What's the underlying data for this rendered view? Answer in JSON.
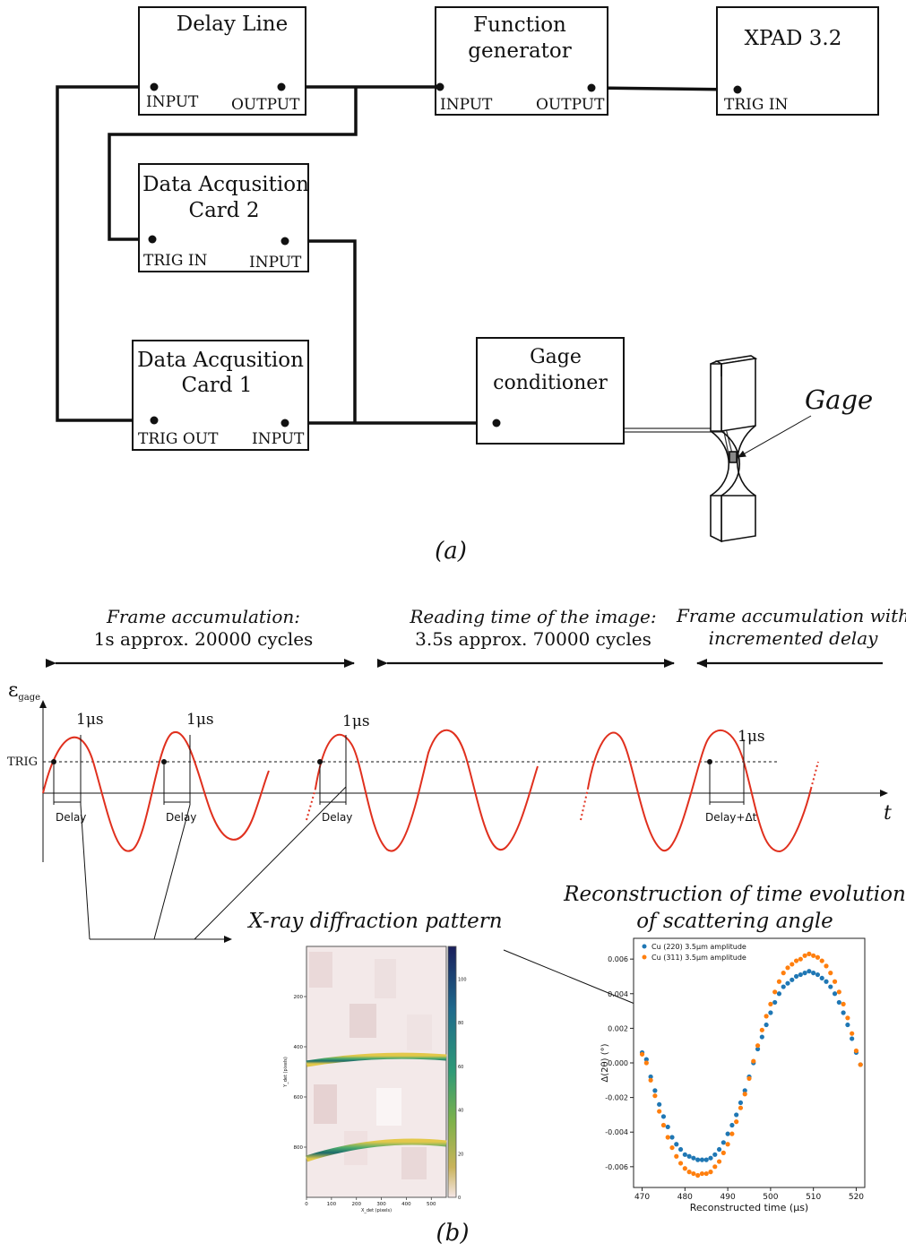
{
  "panel_a": {
    "delay_line": {
      "title": "Delay Line",
      "input": "INPUT",
      "output": "OUTPUT"
    },
    "function_generator": {
      "title_line1": "Function",
      "title_line2": "generator",
      "input": "INPUT",
      "output": "OUTPUT"
    },
    "xpad": {
      "title": "XPAD 3.2",
      "trig_in": "TRIG IN"
    },
    "daq2": {
      "title_line1": "Data Acqusition",
      "title_line2": "Card 2",
      "trig_in": "TRIG IN",
      "input": "INPUT"
    },
    "daq1": {
      "title_line1": "Data Acqusition",
      "title_line2": "Card 1",
      "trig_out": "TRIG OUT",
      "input": "INPUT"
    },
    "gage_conditioner": {
      "title_line1": "Gage",
      "title_line2": "conditioner"
    },
    "gage_label": "Gage",
    "caption": "(a)"
  },
  "panel_b": {
    "phase1": {
      "line1": "Frame accumulation:",
      "line2": "1s approx. 20000 cycles"
    },
    "phase2": {
      "line1": "Reading time  of the image:",
      "line2": "3.5s approx. 70000 cycles"
    },
    "phase3": {
      "line1": "Frame accumulation  with",
      "line2": "incremented delay"
    },
    "y_axis_label": "ε",
    "y_axis_sub": "gage",
    "x_axis_label": "t",
    "trig_label": "TRIG",
    "us_label": "1μs",
    "delay_label": "Delay",
    "delay_dt_label": "Delay+Δt",
    "xrd_title": "X-ray diffraction pattern",
    "recon_title_line1": "Reconstruction of time evolution",
    "recon_title_line2": "of scattering angle",
    "caption": "(b)",
    "detector": {
      "y_ticks": [
        "200",
        "400",
        "600",
        "800"
      ],
      "x_ticks": [
        "0",
        "100",
        "200",
        "300",
        "400",
        "500"
      ],
      "cbar_ticks": [
        "0",
        "20",
        "40",
        "60",
        "80",
        "100"
      ],
      "xlabel": "X_det (pixels)",
      "ylabel": "Y_det (pixels)"
    }
  },
  "chart_data": {
    "type": "scatter",
    "xlabel": "Reconstructed time (μs)",
    "ylabel": "Δ(2θ) (°)",
    "xlim": [
      468,
      522
    ],
    "ylim": [
      -0.0072,
      0.0072
    ],
    "x_ticks": [
      470,
      480,
      490,
      500,
      510,
      520
    ],
    "y_ticks": [
      -0.006,
      -0.004,
      -0.002,
      0.0,
      0.002,
      0.004,
      0.006
    ],
    "y_tick_labels": [
      "-0.006",
      "-0.004",
      "-0.002",
      "0.000",
      "0.002",
      "0.004",
      "0.006"
    ],
    "x_tick_labels": [
      "470",
      "480",
      "490",
      "500",
      "510",
      "520"
    ],
    "legend_position": "top-left",
    "series": [
      {
        "name": "Cu (220) 3.5μm amplitude",
        "color": "#1f77b4",
        "x": [
          470,
          471,
          472,
          473,
          474,
          475,
          476,
          477,
          478,
          479,
          480,
          481,
          482,
          483,
          484,
          485,
          486,
          487,
          488,
          489,
          490,
          491,
          492,
          493,
          494,
          495,
          496,
          497,
          498,
          499,
          500,
          501,
          502,
          503,
          504,
          505,
          506,
          507,
          508,
          509,
          510,
          511,
          512,
          513,
          514,
          515,
          516,
          517,
          518,
          519,
          520,
          521
        ],
        "y": [
          0.0006,
          0.0002,
          -0.0008,
          -0.0016,
          -0.0024,
          -0.0031,
          -0.0037,
          -0.0043,
          -0.0047,
          -0.005,
          -0.0053,
          -0.0054,
          -0.0055,
          -0.0056,
          -0.0056,
          -0.0056,
          -0.0055,
          -0.0053,
          -0.005,
          -0.0046,
          -0.0041,
          -0.0036,
          -0.003,
          -0.0023,
          -0.0016,
          -0.0008,
          0.0,
          0.0008,
          0.0015,
          0.0022,
          0.0029,
          0.0035,
          0.004,
          0.0044,
          0.0046,
          0.0048,
          0.005,
          0.0051,
          0.0052,
          0.0053,
          0.0052,
          0.0051,
          0.0049,
          0.0047,
          0.0044,
          0.004,
          0.0035,
          0.0029,
          0.0022,
          0.0014,
          0.0006,
          -0.0001
        ]
      },
      {
        "name": "Cu (311) 3.5μm amplitude",
        "color": "#ff7f0e",
        "x": [
          470,
          471,
          472,
          473,
          474,
          475,
          476,
          477,
          478,
          479,
          480,
          481,
          482,
          483,
          484,
          485,
          486,
          487,
          488,
          489,
          490,
          491,
          492,
          493,
          494,
          495,
          496,
          497,
          498,
          499,
          500,
          501,
          502,
          503,
          504,
          505,
          506,
          507,
          508,
          509,
          510,
          511,
          512,
          513,
          514,
          515,
          516,
          517,
          518,
          519,
          520,
          521
        ],
        "y": [
          0.0005,
          0.0,
          -0.001,
          -0.0019,
          -0.0028,
          -0.0036,
          -0.0043,
          -0.0049,
          -0.0054,
          -0.0058,
          -0.0061,
          -0.0063,
          -0.0064,
          -0.0065,
          -0.0064,
          -0.0064,
          -0.0063,
          -0.006,
          -0.0057,
          -0.0052,
          -0.0047,
          -0.0041,
          -0.0034,
          -0.0026,
          -0.0018,
          -0.0009,
          0.0001,
          0.001,
          0.0019,
          0.0027,
          0.0034,
          0.0041,
          0.0047,
          0.0052,
          0.0055,
          0.0057,
          0.0059,
          0.006,
          0.0062,
          0.0063,
          0.0062,
          0.0061,
          0.0059,
          0.0056,
          0.0052,
          0.0047,
          0.0041,
          0.0034,
          0.0026,
          0.0017,
          0.0007,
          -0.0001
        ]
      }
    ]
  }
}
